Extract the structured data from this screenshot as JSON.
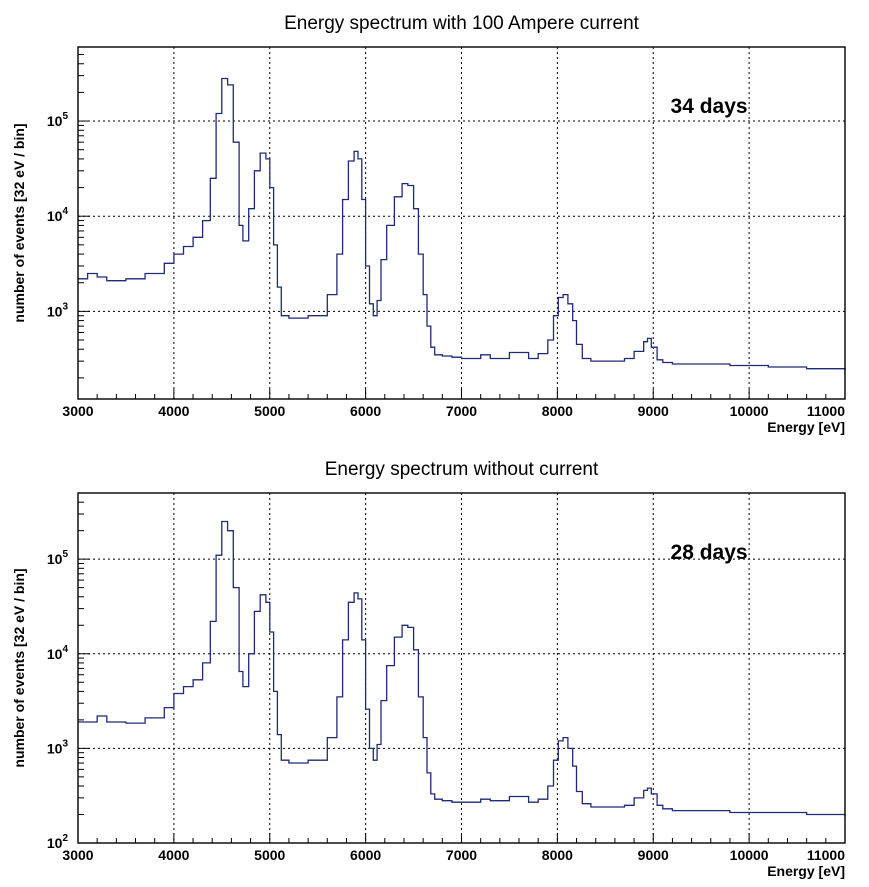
{
  "chart_data": [
    {
      "type": "line",
      "step": true,
      "title": "Energy spectrum with 100 Ampere current",
      "xlabel": "Energy [eV]",
      "ylabel": "number of events  [32 eV / bin]",
      "annotation": "34 days",
      "xlim": [
        3000,
        11000
      ],
      "ylim": [
        120,
        600000
      ],
      "yscale": "log",
      "grid": true,
      "x_ticks": [
        3000,
        4000,
        5000,
        6000,
        7000,
        8000,
        9000,
        10000,
        11000
      ],
      "y_ticks": [
        {
          "value": 1000,
          "label": "10",
          "exp": "3"
        },
        {
          "value": 10000,
          "label": "10",
          "exp": "4"
        },
        {
          "value": 100000,
          "label": "10",
          "exp": "5"
        }
      ],
      "series": [
        {
          "color": "#1f2a78",
          "x": [
            3000,
            3100,
            3200,
            3300,
            3500,
            3700,
            3900,
            4000,
            4100,
            4200,
            4300,
            4380,
            4440,
            4500,
            4560,
            4620,
            4680,
            4720,
            4780,
            4840,
            4900,
            4960,
            5000,
            5040,
            5080,
            5120,
            5200,
            5400,
            5600,
            5700,
            5760,
            5820,
            5880,
            5920,
            5960,
            6000,
            6040,
            6080,
            6120,
            6160,
            6220,
            6300,
            6380,
            6440,
            6500,
            6550,
            6600,
            6640,
            6680,
            6720,
            6800,
            6900,
            7000,
            7200,
            7300,
            7500,
            7700,
            7800,
            7900,
            7960,
            8010,
            8060,
            8110,
            8160,
            8200,
            8260,
            8350,
            8500,
            8700,
            8800,
            8900,
            8940,
            8980,
            9040,
            9100,
            9200,
            9400,
            9600,
            9800,
            10000,
            10200,
            10400,
            10600,
            10800,
            11000
          ],
          "y": [
            2200,
            2500,
            2300,
            2100,
            2200,
            2500,
            3200,
            4000,
            4800,
            6000,
            9000,
            25000,
            120000,
            280000,
            240000,
            60000,
            8000,
            5500,
            12000,
            30000,
            46000,
            40000,
            20000,
            5000,
            1800,
            900,
            850,
            900,
            1500,
            4000,
            15000,
            38000,
            48000,
            40000,
            15000,
            3000,
            1200,
            900,
            1300,
            3500,
            8000,
            16000,
            22000,
            21000,
            12000,
            4000,
            1500,
            700,
            420,
            350,
            340,
            330,
            320,
            350,
            320,
            370,
            320,
            360,
            500,
            900,
            1400,
            1500,
            1200,
            800,
            450,
            320,
            300,
            300,
            320,
            380,
            480,
            520,
            420,
            310,
            290,
            280,
            280,
            280,
            270,
            270,
            260,
            260,
            250,
            250,
            240
          ]
        }
      ]
    },
    {
      "type": "line",
      "step": true,
      "title": "Energy spectrum without current",
      "xlabel": "Energy [eV]",
      "ylabel": "number of events  [32 eV / bin]",
      "annotation": "28 days",
      "xlim": [
        3000,
        11000
      ],
      "ylim": [
        100,
        500000
      ],
      "yscale": "log",
      "grid": true,
      "x_ticks": [
        3000,
        4000,
        5000,
        6000,
        7000,
        8000,
        9000,
        10000,
        11000
      ],
      "y_ticks": [
        {
          "value": 100,
          "label": "10",
          "exp": "2"
        },
        {
          "value": 1000,
          "label": "10",
          "exp": "3"
        },
        {
          "value": 10000,
          "label": "10",
          "exp": "4"
        },
        {
          "value": 100000,
          "label": "10",
          "exp": "5"
        }
      ],
      "series": [
        {
          "color": "#1f2a78",
          "x": [
            3000,
            3100,
            3200,
            3300,
            3500,
            3700,
            3900,
            4000,
            4100,
            4200,
            4300,
            4380,
            4440,
            4500,
            4560,
            4620,
            4680,
            4720,
            4780,
            4840,
            4900,
            4960,
            5000,
            5040,
            5080,
            5120,
            5200,
            5400,
            5600,
            5700,
            5760,
            5820,
            5880,
            5920,
            5960,
            6000,
            6040,
            6080,
            6120,
            6160,
            6220,
            6300,
            6380,
            6440,
            6500,
            6550,
            6600,
            6640,
            6680,
            6720,
            6800,
            6900,
            7000,
            7200,
            7300,
            7500,
            7700,
            7800,
            7900,
            7960,
            8010,
            8060,
            8110,
            8160,
            8200,
            8260,
            8350,
            8500,
            8700,
            8800,
            8900,
            8940,
            8980,
            9040,
            9100,
            9200,
            9400,
            9600,
            9800,
            10000,
            10200,
            10400,
            10600,
            10800,
            11000
          ],
          "y": [
            1900,
            1900,
            2200,
            1900,
            1850,
            2100,
            2700,
            3800,
            4500,
            5300,
            8000,
            22000,
            110000,
            250000,
            200000,
            50000,
            6500,
            4500,
            10000,
            28000,
            42000,
            35000,
            17000,
            4000,
            1400,
            750,
            700,
            750,
            1300,
            3500,
            14000,
            35000,
            44000,
            38000,
            14000,
            2600,
            1000,
            750,
            1100,
            3200,
            7500,
            15000,
            20000,
            19000,
            11000,
            3500,
            1300,
            550,
            330,
            290,
            280,
            270,
            270,
            290,
            280,
            310,
            270,
            290,
            400,
            750,
            1200,
            1300,
            1000,
            650,
            350,
            260,
            240,
            240,
            250,
            300,
            360,
            380,
            330,
            250,
            230,
            220,
            220,
            220,
            210,
            210,
            210,
            210,
            200,
            200,
            190
          ]
        }
      ]
    }
  ]
}
